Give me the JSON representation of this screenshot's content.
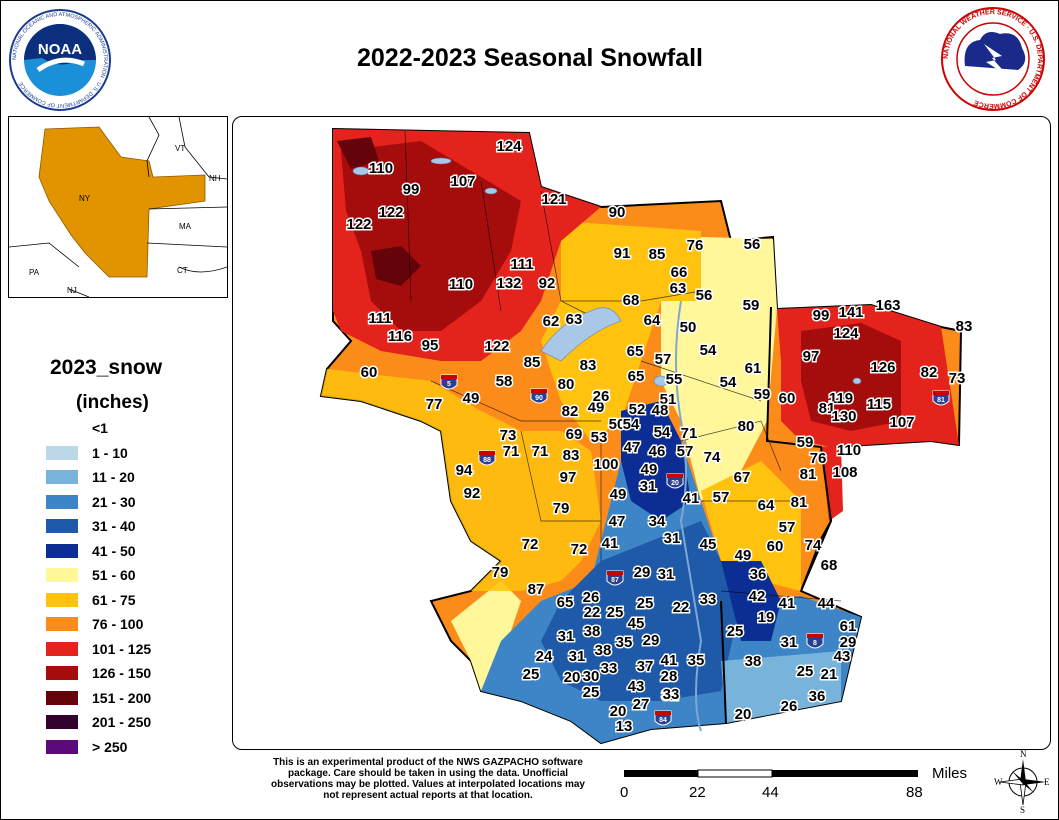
{
  "title": "2022-2023 Seasonal Snowfall",
  "logos": {
    "noaa_text": "NOAA",
    "noaa_ring_text": "NATIONAL OCEANIC AND ATMOSPHERIC ADMINISTRATION · U.S. DEPARTMENT OF COMMERCE",
    "nws_ring_text": "NATIONAL WEATHER SERVICE · U.S. DEPARTMENT OF COMMERCE"
  },
  "inset": {
    "labels": [
      "VT",
      "NH",
      "NY",
      "MA",
      "CT",
      "PA",
      "NJ"
    ]
  },
  "legend": {
    "title": "2023_snow",
    "unit": "(inches)",
    "items": [
      {
        "label": "<1",
        "color": ""
      },
      {
        "label": "1 - 10",
        "color": "#bcd7e8"
      },
      {
        "label": "11 - 20",
        "color": "#77b3db"
      },
      {
        "label": "21 - 30",
        "color": "#3d85c6"
      },
      {
        "label": "31 - 40",
        "color": "#1f5aa8"
      },
      {
        "label": "41 - 50",
        "color": "#0c2d94"
      },
      {
        "label": "51 - 60",
        "color": "#fff799"
      },
      {
        "label": "61 - 75",
        "color": "#ffc20e"
      },
      {
        "label": "76 - 100",
        "color": "#fb8c1a"
      },
      {
        "label": "101 - 125",
        "color": "#e3231c"
      },
      {
        "label": "126 - 150",
        "color": "#a50d0d"
      },
      {
        "label": "151 - 200",
        "color": "#640309"
      },
      {
        "label": "201 - 250",
        "color": "#33022e"
      },
      {
        "label": "> 250",
        "color": "#5c0a7a"
      }
    ]
  },
  "stations": [
    "124",
    "110",
    "99",
    "107",
    "122",
    "121",
    "90",
    "122",
    "76",
    "56",
    "91",
    "85",
    "66",
    "111",
    "63",
    "56",
    "110",
    "132",
    "92",
    "68",
    "59",
    "163",
    "99",
    "141",
    "83",
    "111",
    "62",
    "63",
    "64",
    "50",
    "124",
    "116",
    "95",
    "122",
    "85",
    "83",
    "65",
    "57",
    "54",
    "97",
    "126",
    "82",
    "73",
    "60",
    "65",
    "58",
    "55",
    "54",
    "61",
    "80",
    "49",
    "77",
    "82",
    "49",
    "51",
    "59",
    "60",
    "119",
    "115",
    "81",
    "50",
    "52",
    "48",
    "54",
    "130",
    "107",
    "73",
    "69",
    "53",
    "54",
    "71",
    "80",
    "59",
    "71",
    "71",
    "83",
    "47",
    "46",
    "57",
    "76",
    "110",
    "94",
    "100",
    "49",
    "74",
    "81",
    "108",
    "97",
    "67",
    "92",
    "31",
    "41",
    "57",
    "64",
    "81",
    "79",
    "49",
    "47",
    "34",
    "31",
    "41",
    "57",
    "72",
    "72",
    "45",
    "49",
    "60",
    "74",
    "68",
    "79",
    "87",
    "29",
    "31",
    "36",
    "65",
    "26",
    "22",
    "25",
    "25",
    "22",
    "33",
    "42",
    "41",
    "44",
    "45",
    "19",
    "61",
    "31",
    "38",
    "25",
    "24",
    "38",
    "35",
    "29",
    "29",
    "31",
    "30",
    "31",
    "43",
    "38",
    "41",
    "35",
    "37",
    "28",
    "33",
    "25",
    "25",
    "20",
    "43",
    "31",
    "25",
    "21",
    "33",
    "20",
    "36",
    "20",
    "26",
    "27",
    "13",
    "15",
    "15",
    "26"
  ],
  "disclaimer": "This is an experimental product of the NWS GAZPACHO software package. Care should be taken in using the data. Unofficial observations may be plotted. Values at interpolated locations may not represent actual reports at that location.",
  "scale": {
    "title": "Miles",
    "ticks": [
      "0",
      "22",
      "44",
      "88"
    ]
  },
  "compass": {
    "n": "N",
    "s": "S",
    "e": "E",
    "w": "W"
  },
  "interstates": [
    "90",
    "88",
    "87",
    "84",
    "81",
    "20",
    "8",
    "5"
  ]
}
